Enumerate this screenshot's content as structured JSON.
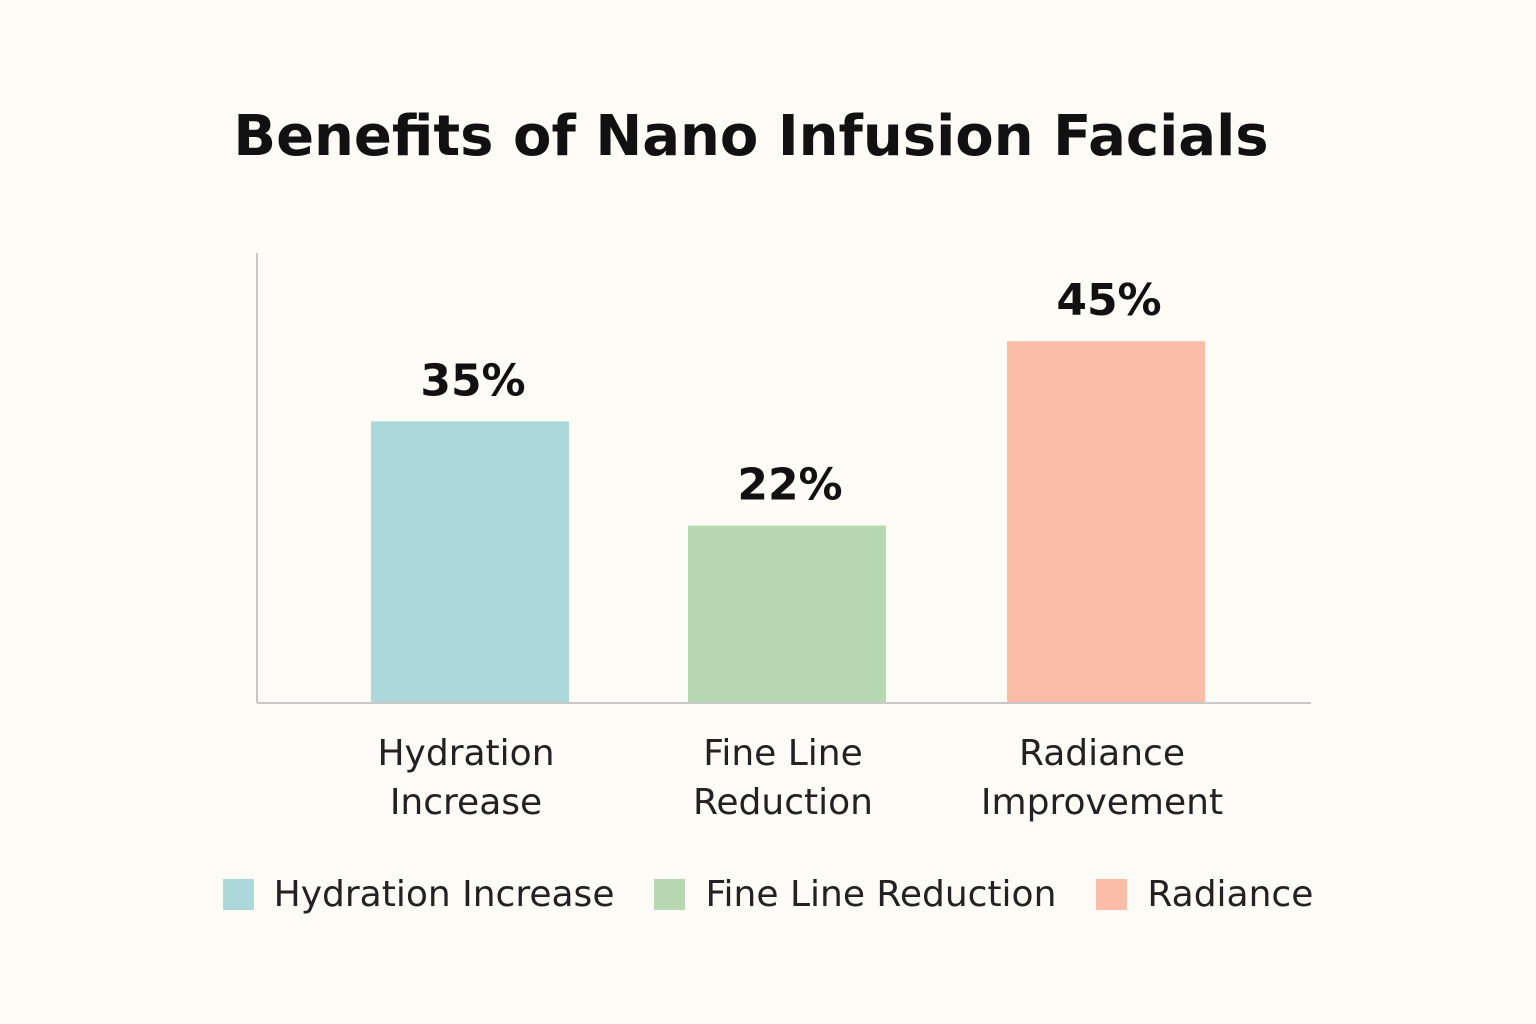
{
  "chart_data": {
    "type": "bar",
    "title": "Benefits of Nano Infusion Facials",
    "categories": [
      "Hydration Increase",
      "Fine Line Reduction",
      "Radiance Improvement"
    ],
    "category_lines": [
      [
        "Hydration",
        "Increase"
      ],
      [
        "Fine Line",
        "Reduction"
      ],
      [
        "Radiance",
        "Improvement"
      ]
    ],
    "values": [
      35,
      22,
      45
    ],
    "data_labels": [
      "35%",
      "22%",
      "45%"
    ],
    "colors": [
      "#acd8da",
      "#b7d7b0",
      "#fbbda8"
    ],
    "xlabel": "",
    "ylabel": "",
    "ylim": [
      0,
      56
    ],
    "grid": false,
    "legend": {
      "placement": "bottom",
      "entries": [
        "Hydration Increase",
        "Fine Line Reduction",
        "Radiance"
      ]
    }
  }
}
